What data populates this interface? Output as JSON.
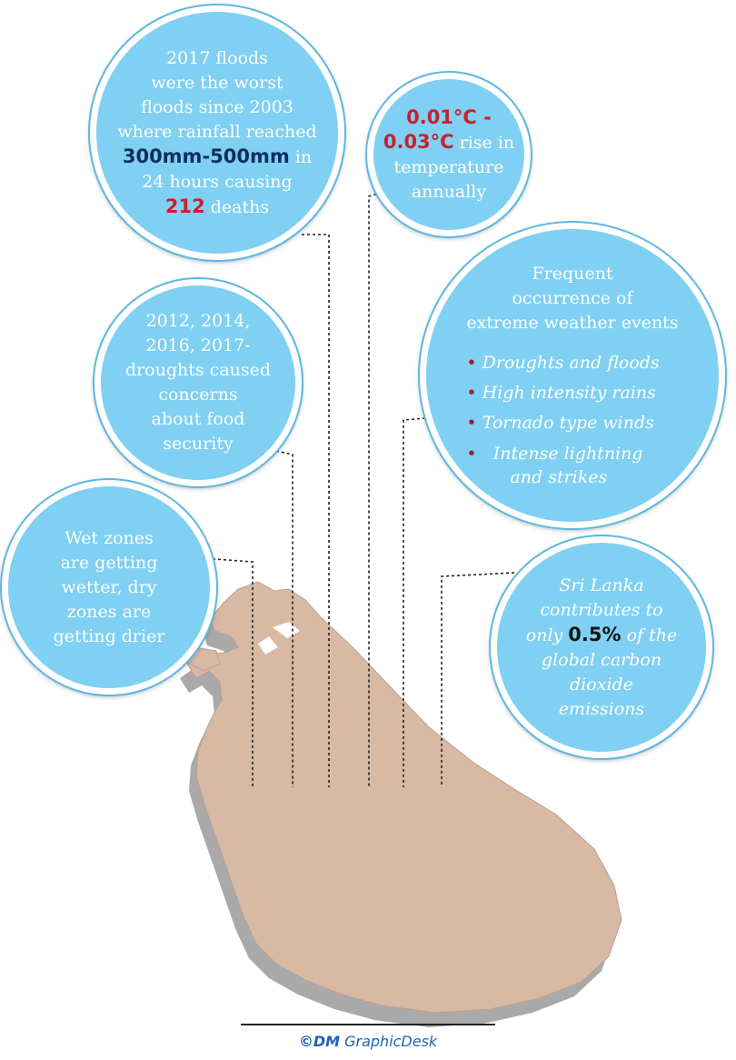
{
  "bubbles": {
    "floods": {
      "line1": "2017 floods",
      "line2": "were the worst",
      "line3": "floods since 2003",
      "line4": "where rainfall reached",
      "highlight_range": "300mm-500mm",
      "line5_suffix": " in",
      "line6": "24 hours causing",
      "highlight_deaths": "212",
      "line7_suffix": " deaths"
    },
    "temperature": {
      "highlight_a": "0.01°C -",
      "highlight_b": "0.03°C",
      "line2_suffix": " rise in",
      "line3": "temperature",
      "line4": "annually"
    },
    "extreme_weather": {
      "title1": "Frequent",
      "title2": "occurrence of",
      "title3": "extreme weather events",
      "items": [
        "Droughts and floods",
        "High intensity rains",
        "Tornado type winds",
        "Intense lightning"
      ],
      "item4_line2": "and strikes",
      "bullet": "•"
    },
    "droughts": {
      "line1": "2012, 2014,",
      "line2": "2016, 2017-",
      "line3": "droughts caused",
      "line4": "concerns",
      "line5": "about food",
      "line6": "security"
    },
    "zones": {
      "line1": "Wet zones",
      "line2": "are getting",
      "line3": "wetter, dry",
      "line4": "zones are",
      "line5": "getting drier"
    },
    "carbon": {
      "line1": "Sri Lanka",
      "line2": "contributes to",
      "line3_prefix": "only ",
      "highlight_pct": "0.5%",
      "line3_suffix": " of the",
      "line4": "global carbon",
      "line5": "dioxide",
      "line6": "emissions"
    }
  },
  "credit": {
    "copyright_symbol": "©",
    "brand": "DM",
    "desk": " GraphicDesk"
  },
  "colors": {
    "bubble_fill": "#7fd0f2",
    "map_top": "#d7b9a4",
    "map_side": "#a9a9a9",
    "highlight_navy": "#0f2e5e",
    "highlight_red": "#c8202b"
  }
}
